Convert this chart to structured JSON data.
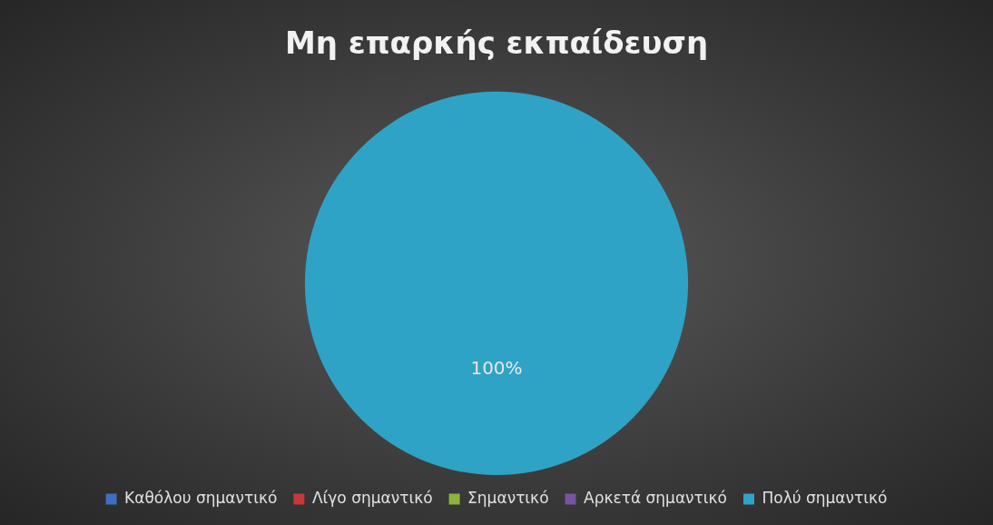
{
  "chart_data": {
    "type": "pie",
    "title": "Μη επαρκής εκπαίδευση",
    "categories": [
      "Καθόλου σημαντικό",
      "Λίγο σημαντικό",
      "Σημαντικό",
      "Αρκετά σημαντικό",
      "Πολύ σημαντικό"
    ],
    "values": [
      0,
      0,
      0,
      0,
      100
    ],
    "colors": [
      "#3f6fc0",
      "#c8383a",
      "#8db33e",
      "#7555a0",
      "#2fa3c6"
    ],
    "value_labels": [
      null,
      null,
      null,
      null,
      "100%"
    ],
    "legend": "bottom"
  }
}
